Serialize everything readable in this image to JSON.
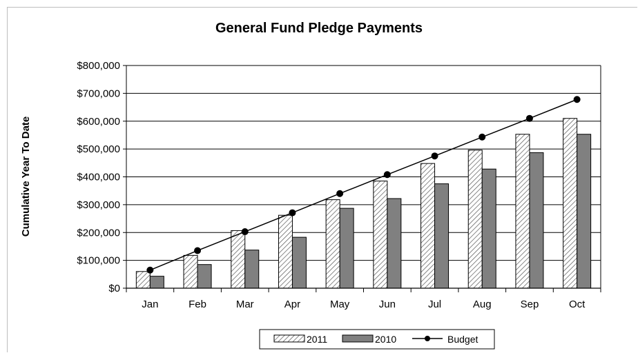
{
  "chart_data": {
    "type": "bar",
    "title": "General Fund Pledge Payments",
    "ylabel": "Cumulative Year To Date",
    "xlabel": "",
    "ylim": [
      0,
      800000
    ],
    "y_ticks": [
      "$0",
      "$100,000",
      "$200,000",
      "$300,000",
      "$400,000",
      "$500,000",
      "$600,000",
      "$700,000",
      "$800,000"
    ],
    "categories": [
      "Jan",
      "Feb",
      "Mar",
      "Apr",
      "May",
      "Jun",
      "Jul",
      "Aug",
      "Sep",
      "Oct"
    ],
    "series": [
      {
        "name": "2011",
        "kind": "bar",
        "style": "hatched",
        "values": [
          60000,
          118000,
          207000,
          262000,
          318000,
          385000,
          448000,
          496000,
          553000,
          610000
        ]
      },
      {
        "name": "2010",
        "kind": "bar",
        "style": "solid",
        "color": "#808080",
        "values": [
          43000,
          85000,
          137000,
          183000,
          287000,
          322000,
          375000,
          428000,
          487000,
          553000
        ]
      },
      {
        "name": "Budget",
        "kind": "line",
        "color": "#000000",
        "values": [
          65000,
          135000,
          203000,
          271000,
          340000,
          408000,
          475000,
          543000,
          610000,
          678000
        ]
      }
    ],
    "grid": "horizontal",
    "legend": "bottom"
  }
}
